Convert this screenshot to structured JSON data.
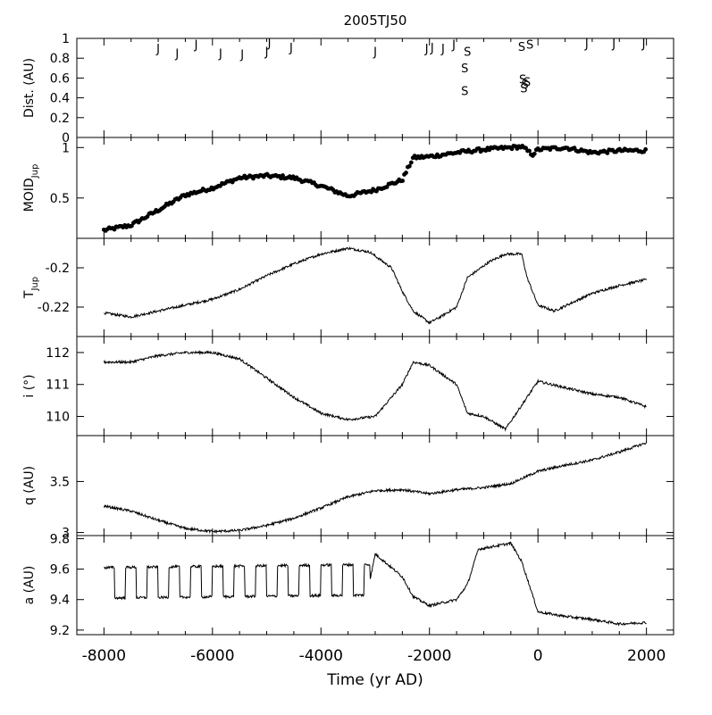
{
  "chart_data": {
    "type": "line",
    "title": "2005TJ50",
    "xlabel": "Time (yr AD)",
    "xlim": [
      -8500,
      2500
    ],
    "x_ticks": [
      -8000,
      -6000,
      -4000,
      -2000,
      0,
      2000
    ],
    "x_tick_labels": [
      "-8000",
      "-6000",
      "-4000",
      "-2000",
      "0",
      "2000"
    ],
    "panels": [
      {
        "id": "dist",
        "ylabel": "Dist. (AU)",
        "ylim": [
          0,
          1
        ],
        "y_ticks": [
          0,
          0.2,
          0.4,
          0.6,
          0.8,
          1
        ],
        "y_tick_labels": [
          "0",
          "0.2",
          "0.4",
          "0.6",
          "0.8",
          "1"
        ],
        "type": "encounters",
        "encounters": [
          {
            "t": -7000,
            "d": 0.91,
            "planet": "J"
          },
          {
            "t": -6650,
            "d": 0.86,
            "planet": "J"
          },
          {
            "t": -6300,
            "d": 0.95,
            "planet": "J"
          },
          {
            "t": -5850,
            "d": 0.86,
            "planet": "J"
          },
          {
            "t": -5450,
            "d": 0.85,
            "planet": "J"
          },
          {
            "t": -5000,
            "d": 0.88,
            "planet": "J"
          },
          {
            "t": -4950,
            "d": 0.97,
            "planet": "J"
          },
          {
            "t": -4550,
            "d": 0.92,
            "planet": "J"
          },
          {
            "t": -3000,
            "d": 0.88,
            "planet": "J"
          },
          {
            "t": -2050,
            "d": 0.91,
            "planet": "J"
          },
          {
            "t": -1950,
            "d": 0.92,
            "planet": "J"
          },
          {
            "t": -1750,
            "d": 0.91,
            "planet": "J"
          },
          {
            "t": -1550,
            "d": 0.95,
            "planet": "J"
          },
          {
            "t": -1300,
            "d": 0.88,
            "planet": "S"
          },
          {
            "t": -1350,
            "d": 0.71,
            "planet": "S"
          },
          {
            "t": -1350,
            "d": 0.48,
            "planet": "S"
          },
          {
            "t": -300,
            "d": 0.93,
            "planet": "S"
          },
          {
            "t": -150,
            "d": 0.95,
            "planet": "S"
          },
          {
            "t": -280,
            "d": 0.6,
            "planet": "S"
          },
          {
            "t": -240,
            "d": 0.55,
            "planet": "S"
          },
          {
            "t": -200,
            "d": 0.57,
            "planet": "S"
          },
          {
            "t": -260,
            "d": 0.51,
            "planet": "S"
          },
          {
            "t": 900,
            "d": 0.96,
            "planet": "J"
          },
          {
            "t": 1400,
            "d": 0.96,
            "planet": "J"
          },
          {
            "t": 1950,
            "d": 0.96,
            "planet": "J"
          }
        ]
      },
      {
        "id": "moid",
        "ylabel": "MOID",
        "ylabel_sub": "Jup",
        "ylim": [
          0.1,
          1.1
        ],
        "y_ticks": [
          0.5,
          1
        ],
        "y_tick_labels": [
          "0.5",
          "1"
        ],
        "type": "scatter",
        "x": [
          -8000,
          -7500,
          -7000,
          -6500,
          -6000,
          -5500,
          -5000,
          -4500,
          -4000,
          -3500,
          -3000,
          -2500,
          -2300,
          -2000,
          -1500,
          -1000,
          -500,
          -300,
          -100,
          0,
          500,
          1000,
          1500,
          2000
        ],
        "y": [
          0.18,
          0.23,
          0.38,
          0.53,
          0.6,
          0.7,
          0.72,
          0.7,
          0.62,
          0.52,
          0.58,
          0.68,
          0.9,
          0.91,
          0.95,
          0.98,
          1.0,
          1.01,
          0.93,
          0.98,
          1.0,
          0.95,
          0.97,
          0.97
        ]
      },
      {
        "id": "tjup",
        "ylabel": "T",
        "ylabel_sub": "Jup",
        "ylim": [
          -0.235,
          -0.185
        ],
        "y_ticks": [
          -0.22,
          -0.2
        ],
        "y_tick_labels": [
          "-0.22",
          "-0.2"
        ],
        "type": "line",
        "x": [
          -8000,
          -7500,
          -7000,
          -6500,
          -6000,
          -5500,
          -5000,
          -4500,
          -4000,
          -3500,
          -3100,
          -2700,
          -2500,
          -2300,
          -2000,
          -1800,
          -1500,
          -1300,
          -900,
          -600,
          -300,
          -200,
          0,
          300,
          1000,
          1500,
          2000
        ],
        "y": [
          -0.223,
          -0.225,
          -0.222,
          -0.219,
          -0.216,
          -0.211,
          -0.204,
          -0.198,
          -0.193,
          -0.19,
          -0.192,
          -0.2,
          -0.212,
          -0.222,
          -0.228,
          -0.225,
          -0.22,
          -0.205,
          -0.197,
          -0.193,
          -0.193,
          -0.205,
          -0.219,
          -0.222,
          -0.213,
          -0.209,
          -0.206
        ]
      },
      {
        "id": "incl",
        "ylabel": "i (°)",
        "ylim": [
          109.4,
          112.5
        ],
        "y_ticks": [
          110,
          111,
          112
        ],
        "y_tick_labels": [
          "110",
          "111",
          "112"
        ],
        "type": "line",
        "x": [
          -8000,
          -7500,
          -7000,
          -6500,
          -6000,
          -5500,
          -5000,
          -4500,
          -4000,
          -3500,
          -3000,
          -2500,
          -2300,
          -2000,
          -1500,
          -1300,
          -1000,
          -600,
          -400,
          0,
          500,
          1000,
          1500,
          2000
        ],
        "y": [
          111.7,
          111.7,
          111.9,
          112.0,
          112.0,
          111.8,
          111.2,
          110.6,
          110.1,
          109.9,
          110.0,
          111.0,
          111.7,
          111.6,
          111.0,
          110.1,
          110.0,
          109.6,
          110.1,
          111.1,
          110.9,
          110.7,
          110.6,
          110.3
        ]
      },
      {
        "id": "q",
        "ylabel": "q (AU)",
        "ylim": [
          2.97,
          3.95
        ],
        "y_ticks": [
          3,
          3.5
        ],
        "y_tick_labels": [
          "3",
          "3.5"
        ],
        "type": "line",
        "x": [
          -8000,
          -7500,
          -7000,
          -6500,
          -6000,
          -5500,
          -5000,
          -4500,
          -4000,
          -3500,
          -3000,
          -2500,
          -2000,
          -1500,
          -1000,
          -500,
          0,
          500,
          1000,
          1500,
          2000
        ],
        "y": [
          3.26,
          3.21,
          3.12,
          3.04,
          3.01,
          3.02,
          3.07,
          3.14,
          3.24,
          3.35,
          3.41,
          3.42,
          3.38,
          3.42,
          3.44,
          3.48,
          3.6,
          3.66,
          3.71,
          3.79,
          3.88
        ]
      },
      {
        "id": "a",
        "ylabel": "a (AU)",
        "ylim": [
          9.17,
          9.82
        ],
        "y_ticks": [
          9.2,
          9.4,
          9.6,
          9.8
        ],
        "y_tick_labels": [
          "9.2",
          "9.4",
          "9.6",
          "9.8"
        ],
        "type": "line",
        "x": [
          -8000,
          -3100,
          -3000,
          -2500,
          -2300,
          -2000,
          -1500,
          -1300,
          -1100,
          -500,
          -300,
          0,
          500,
          1000,
          1500,
          2000
        ],
        "y": [
          9.5,
          9.52,
          9.7,
          9.55,
          9.42,
          9.36,
          9.4,
          9.5,
          9.73,
          9.77,
          9.65,
          9.32,
          9.29,
          9.27,
          9.24,
          9.25
        ],
        "oscillation": {
          "amplitude": 0.1,
          "period_years": 400,
          "from": -8000,
          "to": -3100
        }
      }
    ]
  }
}
